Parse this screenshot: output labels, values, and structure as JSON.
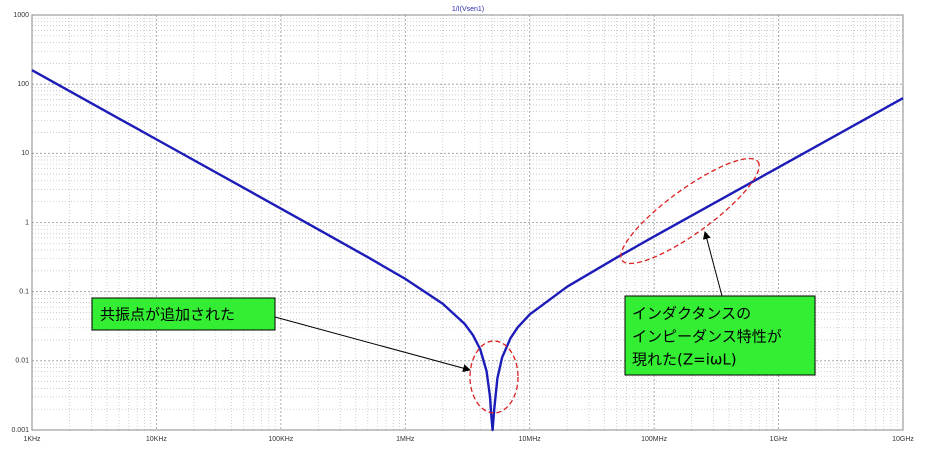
{
  "chart_data": {
    "type": "line",
    "title": "1/I(Vsen1)",
    "x": [
      1000,
      10000,
      100000,
      200000,
      500000,
      1000000,
      2000000,
      3000000,
      3500000,
      4000000,
      4500000,
      4800000,
      4900000,
      5030000,
      5200000,
      5500000,
      6000000,
      7000000,
      8000000,
      10000000,
      20000000,
      50000000,
      100000000,
      1000000000,
      10000000000
    ],
    "values": [
      159.2,
      15.92,
      1.592,
      0.795,
      0.315,
      0.153,
      0.067,
      0.0342,
      0.0235,
      0.0147,
      0.0071,
      0.003,
      0.0017,
      0.001,
      0.0021,
      0.0056,
      0.0112,
      0.0212,
      0.0304,
      0.0469,
      0.118,
      0.311,
      0.628,
      6.28,
      62.8
    ],
    "color": "#1c1cb8",
    "log_x": true,
    "log_y": true,
    "grid": true,
    "minor_grid": true,
    "xlim": [
      1000,
      10000000000
    ],
    "xticks": [
      {
        "value": 1000,
        "label": "1KHz"
      },
      {
        "value": 10000,
        "label": "10KHz"
      },
      {
        "value": 100000,
        "label": "100KHz"
      },
      {
        "value": 1000000,
        "label": "1MHz"
      },
      {
        "value": 10000000,
        "label": "10MHz"
      },
      {
        "value": 100000000,
        "label": "100MHz"
      },
      {
        "value": 1000000000,
        "label": "1GHz"
      },
      {
        "value": 10000000000,
        "label": "10GHz"
      }
    ],
    "ylim": [
      0.001,
      1000
    ],
    "yticks": [
      0.001,
      0.01,
      0.1,
      1,
      10,
      100,
      1000
    ],
    "annotations": [
      {
        "lines": [
          "共振点が追加された"
        ]
      },
      {
        "lines": [
          "インダクタンスの",
          "インピーダンス特性が",
          "現れた(Z=iωL)"
        ]
      }
    ]
  }
}
